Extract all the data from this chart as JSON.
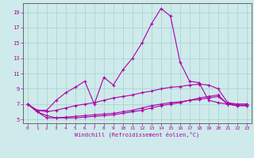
{
  "xlabel": "Windchill (Refroidissement éolien,°C)",
  "background_color": "#ceeaea",
  "grid_color": "#a8d0d0",
  "line_color": "#aa00aa",
  "xlim": [
    -0.5,
    23.5
  ],
  "ylim": [
    4.5,
    20.2
  ],
  "xticks": [
    0,
    1,
    2,
    3,
    4,
    5,
    6,
    7,
    8,
    9,
    10,
    11,
    12,
    13,
    14,
    15,
    16,
    17,
    18,
    19,
    20,
    21,
    22,
    23
  ],
  "yticks": [
    5,
    7,
    9,
    11,
    13,
    15,
    17,
    19
  ],
  "line1_x": [
    0,
    1,
    2,
    3,
    4,
    5,
    6,
    7,
    8,
    9,
    10,
    11,
    12,
    13,
    14,
    15,
    16,
    17,
    18,
    19,
    20,
    21,
    22,
    23
  ],
  "line1_y": [
    7.0,
    6.2,
    6.2,
    7.5,
    8.5,
    9.2,
    10.0,
    7.0,
    10.5,
    9.5,
    11.5,
    13.0,
    15.0,
    17.5,
    19.5,
    18.5,
    12.5,
    10.0,
    9.8,
    7.5,
    7.2,
    7.0,
    7.0,
    7.0
  ],
  "line2_x": [
    0,
    1,
    2,
    3,
    4,
    5,
    6,
    7,
    8,
    9,
    10,
    11,
    12,
    13,
    14,
    15,
    16,
    17,
    18,
    19,
    20,
    21,
    22,
    23
  ],
  "line2_y": [
    7.0,
    6.2,
    6.0,
    6.2,
    6.5,
    6.8,
    7.0,
    7.2,
    7.5,
    7.8,
    8.0,
    8.2,
    8.5,
    8.7,
    9.0,
    9.2,
    9.3,
    9.5,
    9.6,
    9.5,
    9.0,
    7.2,
    7.0,
    7.0
  ],
  "line3_x": [
    0,
    1,
    2,
    3,
    4,
    5,
    6,
    7,
    8,
    9,
    10,
    11,
    12,
    13,
    14,
    15,
    16,
    17,
    18,
    19,
    20,
    21,
    22,
    23
  ],
  "line3_y": [
    7.0,
    6.0,
    5.5,
    5.2,
    5.2,
    5.2,
    5.3,
    5.4,
    5.5,
    5.6,
    5.8,
    6.0,
    6.2,
    6.5,
    6.8,
    7.0,
    7.2,
    7.5,
    7.8,
    8.0,
    8.2,
    7.0,
    6.8,
    6.8
  ],
  "line4_x": [
    0,
    1,
    2,
    3,
    4,
    5,
    6,
    7,
    8,
    9,
    10,
    11,
    12,
    13,
    14,
    15,
    16,
    17,
    18,
    19,
    20,
    21,
    22,
    23
  ],
  "line4_y": [
    7.0,
    6.0,
    5.2,
    5.2,
    5.3,
    5.4,
    5.5,
    5.6,
    5.7,
    5.8,
    6.0,
    6.2,
    6.5,
    6.8,
    7.0,
    7.2,
    7.3,
    7.5,
    7.6,
    7.8,
    8.0,
    7.0,
    6.8,
    6.8
  ]
}
